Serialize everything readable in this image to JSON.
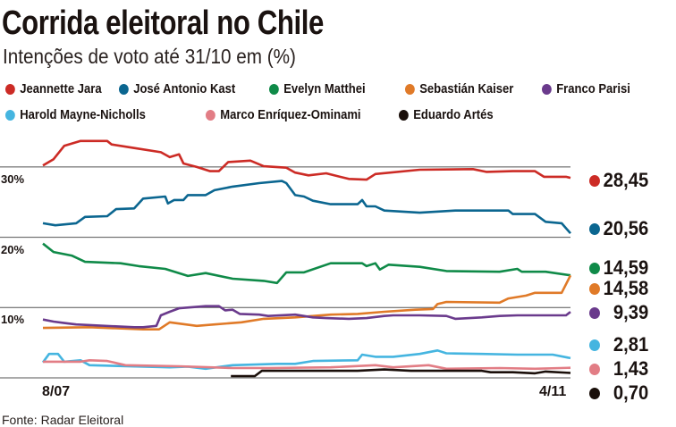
{
  "header": {
    "title": "Corrida eleitoral no Chile",
    "subtitle": "Intenções de voto até 31/10 em (%)"
  },
  "footer": {
    "source": "Fonte: Radar Eleitoral"
  },
  "chart_data": {
    "type": "line",
    "title": "Corrida eleitoral no Chile",
    "subtitle": "Intenções de voto até 31/10 em (%)",
    "xlabel": "",
    "ylabel": "%",
    "x_unit": "days since 8/07",
    "xlim": [
      0,
      119
    ],
    "ylim": [
      0,
      35
    ],
    "x_tick_labels": [
      "8/07",
      "4/11"
    ],
    "y_ticks": [
      0,
      10,
      20,
      30
    ],
    "y_tick_labels": [
      "30%",
      "20%",
      "10%"
    ],
    "grid": true,
    "legend": "top",
    "series": [
      {
        "name": "Jeannette Jara",
        "color": "#cc2b25",
        "final_label": "28,45",
        "points": [
          [
            0,
            30.2
          ],
          [
            2.4,
            31.1
          ],
          [
            4.8,
            33
          ],
          [
            8.5,
            33.7
          ],
          [
            14.5,
            33.7
          ],
          [
            15.5,
            33.2
          ],
          [
            20.6,
            32.7
          ],
          [
            26.6,
            32.1
          ],
          [
            28.6,
            31.4
          ],
          [
            30.7,
            31.8
          ],
          [
            31.7,
            30.5
          ],
          [
            34.7,
            30
          ],
          [
            37.7,
            29.4
          ],
          [
            39.7,
            29.4
          ],
          [
            41.8,
            30.7
          ],
          [
            46.8,
            30.9
          ],
          [
            49.8,
            30.1
          ],
          [
            54.9,
            29.9
          ],
          [
            56.9,
            29.2
          ],
          [
            59.9,
            28.8
          ],
          [
            63.9,
            29.1
          ],
          [
            69,
            28.3
          ],
          [
            73,
            28.2
          ],
          [
            75,
            29
          ],
          [
            85,
            29.6
          ],
          [
            97,
            29.7
          ],
          [
            100,
            29.3
          ],
          [
            106,
            29.4
          ],
          [
            111,
            29.4
          ],
          [
            113,
            28.6
          ],
          [
            118,
            28.6
          ],
          [
            119,
            28.45
          ]
        ]
      },
      {
        "name": "José Antonio Kast",
        "color": "#0b6690",
        "final_label": "20,56",
        "points": [
          [
            0,
            22
          ],
          [
            2.8,
            21.7
          ],
          [
            7.5,
            22
          ],
          [
            9.5,
            22.9
          ],
          [
            14.5,
            23
          ],
          [
            16.5,
            24
          ],
          [
            20.6,
            24.1
          ],
          [
            22.6,
            25.5
          ],
          [
            27.6,
            25.8
          ],
          [
            28.2,
            24.8
          ],
          [
            29.6,
            25.3
          ],
          [
            31.7,
            25.3
          ],
          [
            32.7,
            26
          ],
          [
            36.7,
            26
          ],
          [
            38.7,
            26.7
          ],
          [
            42.8,
            27.2
          ],
          [
            48.8,
            27.7
          ],
          [
            53.9,
            28
          ],
          [
            54.9,
            27.7
          ],
          [
            56.9,
            26
          ],
          [
            58.9,
            25.8
          ],
          [
            60.9,
            25.2
          ],
          [
            64.9,
            24.7
          ],
          [
            71,
            24.7
          ],
          [
            72,
            25.3
          ],
          [
            73,
            24.4
          ],
          [
            75,
            24.4
          ],
          [
            77,
            23.8
          ],
          [
            85,
            23.5
          ],
          [
            93,
            23.8
          ],
          [
            105,
            23.8
          ],
          [
            106,
            23.3
          ],
          [
            111,
            23.3
          ],
          [
            113.4,
            22.2
          ],
          [
            117,
            22
          ],
          [
            119,
            20.56
          ]
        ]
      },
      {
        "name": "Evelyn Matthei",
        "color": "#0f8a48",
        "final_label": "14,59",
        "points": [
          [
            0,
            19.1
          ],
          [
            2.4,
            17.9
          ],
          [
            6.5,
            17.4
          ],
          [
            9.5,
            16.5
          ],
          [
            17.5,
            16.3
          ],
          [
            21.6,
            15.9
          ],
          [
            27.6,
            15.5
          ],
          [
            32.7,
            14.5
          ],
          [
            36.7,
            14.9
          ],
          [
            42.8,
            14.1
          ],
          [
            49.8,
            13.8
          ],
          [
            52.8,
            13.5
          ],
          [
            54.9,
            15
          ],
          [
            58.9,
            15
          ],
          [
            64.9,
            16.3
          ],
          [
            72,
            16.3
          ],
          [
            73,
            15.9
          ],
          [
            75,
            16.3
          ],
          [
            76,
            15.4
          ],
          [
            78,
            16.1
          ],
          [
            85,
            15.8
          ],
          [
            91,
            15.2
          ],
          [
            103,
            15.1
          ],
          [
            107,
            15.5
          ],
          [
            108,
            15.1
          ],
          [
            113.4,
            15.1
          ],
          [
            119,
            14.59
          ]
        ]
      },
      {
        "name": "Sebastián Kaiser",
        "color": "#e07a28",
        "final_label": "14,58",
        "points": [
          [
            0,
            7.1
          ],
          [
            10.5,
            7.2
          ],
          [
            22.6,
            6.9
          ],
          [
            26.2,
            6.9
          ],
          [
            28.6,
            7.9
          ],
          [
            34.7,
            7.4
          ],
          [
            38.7,
            7.6
          ],
          [
            44.8,
            7.9
          ],
          [
            49.8,
            8.4
          ],
          [
            56.9,
            8.6
          ],
          [
            64.9,
            9
          ],
          [
            71,
            9.1
          ],
          [
            77,
            9.4
          ],
          [
            84,
            9.7
          ],
          [
            88,
            9.8
          ],
          [
            89,
            10.5
          ],
          [
            91,
            10.8
          ],
          [
            103,
            10.7
          ],
          [
            105,
            11.3
          ],
          [
            109,
            11.7
          ],
          [
            111,
            12.1
          ],
          [
            117,
            12.1
          ],
          [
            119,
            14.58
          ]
        ]
      },
      {
        "name": "Franco Parisi",
        "color": "#6a3a8c",
        "final_label": "9,39",
        "points": [
          [
            0,
            8.3
          ],
          [
            2.4,
            8.0
          ],
          [
            4.8,
            7.8
          ],
          [
            7.5,
            7.6
          ],
          [
            20.6,
            7.2
          ],
          [
            22.6,
            7.2
          ],
          [
            25.6,
            7.4
          ],
          [
            26.6,
            8.9
          ],
          [
            28.6,
            9.4
          ],
          [
            30.7,
            9.9
          ],
          [
            36.7,
            10.2
          ],
          [
            39.7,
            10.2
          ],
          [
            41.1,
            9.6
          ],
          [
            42.8,
            9.7
          ],
          [
            44.4,
            9.1
          ],
          [
            48.8,
            9
          ],
          [
            50.8,
            8.8
          ],
          [
            56.9,
            9
          ],
          [
            60.9,
            8.6
          ],
          [
            63.9,
            8.5
          ],
          [
            69,
            8.4
          ],
          [
            73,
            8.5
          ],
          [
            77,
            8.8
          ],
          [
            79,
            8.9
          ],
          [
            85,
            8.9
          ],
          [
            91,
            8.8
          ],
          [
            93,
            8.4
          ],
          [
            99,
            8.6
          ],
          [
            103,
            8.8
          ],
          [
            107,
            8.9
          ],
          [
            118,
            8.9
          ],
          [
            119,
            9.39
          ]
        ]
      },
      {
        "name": "Harold Mayne-Nicholls",
        "color": "#45b5e0",
        "final_label": "2,81",
        "points": [
          [
            0,
            2.2
          ],
          [
            1.4,
            3.4
          ],
          [
            3.4,
            3.4
          ],
          [
            4.8,
            2.3
          ],
          [
            8.5,
            2.5
          ],
          [
            10.5,
            1.8
          ],
          [
            28.6,
            1.5
          ],
          [
            32.7,
            1.6
          ],
          [
            36.7,
            1.3
          ],
          [
            42.8,
            1.8
          ],
          [
            52.8,
            2.0
          ],
          [
            56.9,
            2.0
          ],
          [
            60.9,
            2.4
          ],
          [
            71,
            2.5
          ],
          [
            72,
            3.3
          ],
          [
            75,
            3.0
          ],
          [
            79,
            3.0
          ],
          [
            85,
            3.4
          ],
          [
            89,
            3.9
          ],
          [
            91,
            3.5
          ],
          [
            99,
            3.4
          ],
          [
            107,
            3.3
          ],
          [
            115,
            3.3
          ],
          [
            119,
            2.81
          ]
        ]
      },
      {
        "name": "Marco Enríquez-Ominami",
        "color": "#e27d85",
        "final_label": "1,43",
        "points": [
          [
            0,
            2.3
          ],
          [
            8.5,
            2.3
          ],
          [
            10.5,
            2.5
          ],
          [
            14.5,
            2.4
          ],
          [
            18.6,
            1.8
          ],
          [
            30.7,
            1.65
          ],
          [
            42.8,
            1.4
          ],
          [
            50.8,
            1.4
          ],
          [
            64.9,
            1.5
          ],
          [
            75,
            1.8
          ],
          [
            79,
            1.5
          ],
          [
            87,
            1.8
          ],
          [
            91,
            1.3
          ],
          [
            103,
            1.4
          ],
          [
            111,
            1.3
          ],
          [
            119,
            1.43
          ]
        ]
      },
      {
        "name": "Eduardo Artés",
        "color": "#1a0f0a",
        "final_label": "0,70",
        "points": [
          [
            42.4,
            0.25
          ],
          [
            47.8,
            0.25
          ],
          [
            49.4,
            1.0
          ],
          [
            71,
            1.0
          ],
          [
            77,
            1.2
          ],
          [
            83,
            1.0
          ],
          [
            99,
            1.0
          ],
          [
            101,
            0.8
          ],
          [
            106,
            0.8
          ],
          [
            111,
            0.65
          ],
          [
            113.4,
            0.9
          ],
          [
            119,
            0.7
          ]
        ]
      }
    ]
  }
}
